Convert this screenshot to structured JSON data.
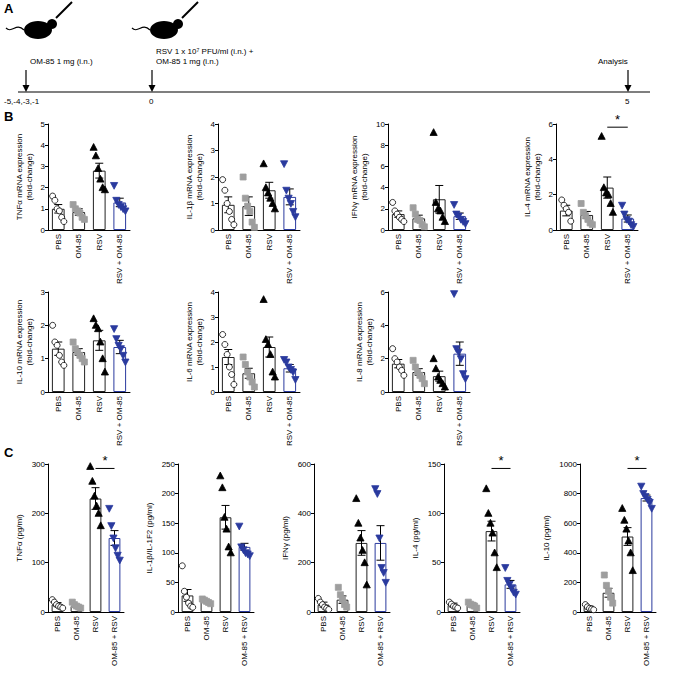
{
  "diagram": {
    "panel": "A",
    "steps": [
      {
        "label": "OM-85 1 mg (i.n.)",
        "time": "-5,-4,-3,-1"
      },
      {
        "label": "RSV 1 x 10⁷ PFU/ml (i.n.) +\nOM-85 1 mg (i.n.)",
        "time": "0"
      },
      {
        "label": "Analysis",
        "time": "5"
      }
    ]
  },
  "chart_data": [
    {
      "type": "bar",
      "panel": "B",
      "y_label": "TNFα mRNA expression\n(fold-change)",
      "categories": [
        "PBS",
        "OM-85",
        "RSV",
        "RSV + OM-85"
      ],
      "ylim": [
        0,
        5
      ],
      "yticks": [
        0,
        1,
        2,
        3,
        4,
        5
      ],
      "series": [
        {
          "color": "#ffffff",
          "marker": "circle",
          "value": 1.0,
          "error": 0.2,
          "points": [
            1.6,
            1.4,
            1.0,
            0.9,
            0.6,
            0.4
          ]
        },
        {
          "color": "#9e9e9e",
          "marker": "square",
          "value": 0.85,
          "error": 0.15,
          "points": [
            1.2,
            1.0,
            0.9,
            0.8,
            0.6,
            0.5
          ]
        },
        {
          "color": "#000000",
          "marker": "triangle",
          "value": 2.8,
          "error": 0.35,
          "points": [
            3.9,
            3.5,
            2.9,
            2.4,
            2.0,
            1.9
          ]
        },
        {
          "color": "#2a3a9e",
          "marker": "triangle-down",
          "value": 1.3,
          "error": 0.2,
          "points": [
            2.1,
            1.4,
            1.2,
            1.1,
            1.0,
            0.9
          ]
        }
      ],
      "annotations": []
    },
    {
      "type": "bar",
      "panel": "B",
      "y_label": "IL-1β mRNA expression\n(fold-change)",
      "categories": [
        "PBS",
        "OM-85",
        "RSV",
        "RSV + OM-85"
      ],
      "ylim": [
        0,
        4
      ],
      "yticks": [
        0,
        1,
        2,
        3,
        4
      ],
      "series": [
        {
          "color": "#ffffff",
          "marker": "circle",
          "value": 0.95,
          "error": 0.3,
          "points": [
            1.9,
            1.5,
            1.0,
            0.7,
            0.4,
            0.2
          ]
        },
        {
          "color": "#9e9e9e",
          "marker": "square",
          "value": 0.9,
          "error": 0.35,
          "points": [
            2.0,
            1.2,
            0.9,
            0.7,
            0.3,
            0.1
          ]
        },
        {
          "color": "#000000",
          "marker": "triangle",
          "value": 1.5,
          "error": 0.3,
          "points": [
            2.5,
            1.6,
            1.4,
            1.2,
            1.0,
            0.8
          ]
        },
        {
          "color": "#2a3a9e",
          "marker": "triangle-down",
          "value": 1.25,
          "error": 0.3,
          "points": [
            2.5,
            1.5,
            1.2,
            1.0,
            0.7,
            0.5
          ]
        }
      ],
      "annotations": []
    },
    {
      "type": "bar",
      "panel": "B",
      "y_label": "IFNγ mRNA expression\n(fold-change)",
      "categories": [
        "PBS",
        "OM-85",
        "RSV",
        "RSV + OM-85"
      ],
      "ylim": [
        0,
        10
      ],
      "yticks": [
        0,
        2,
        4,
        6,
        8,
        10
      ],
      "series": [
        {
          "color": "#ffffff",
          "marker": "circle",
          "value": 1.5,
          "error": 0.3,
          "points": [
            2.6,
            1.8,
            1.5,
            1.2,
            1.0,
            0.8
          ]
        },
        {
          "color": "#9e9e9e",
          "marker": "square",
          "value": 1.1,
          "error": 0.3,
          "points": [
            2.1,
            1.5,
            1.0,
            0.9,
            0.5,
            0.3
          ]
        },
        {
          "color": "#000000",
          "marker": "triangle",
          "value": 2.9,
          "error": 1.3,
          "points": [
            9.2,
            2.6,
            2.0,
            1.8,
            1.2,
            0.8
          ]
        },
        {
          "color": "#2a3a9e",
          "marker": "triangle-down",
          "value": 1.3,
          "error": 0.3,
          "points": [
            2.4,
            1.5,
            1.3,
            1.0,
            0.8,
            0.6
          ]
        }
      ],
      "annotations": []
    },
    {
      "type": "bar",
      "panel": "B",
      "y_label": "IL-4 mRNA expression\n(fold-change)",
      "categories": [
        "PBS",
        "OM-85",
        "RSV",
        "RSV + OM-85"
      ],
      "ylim": [
        0,
        6
      ],
      "yticks": [
        0,
        2,
        4,
        6
      ],
      "series": [
        {
          "color": "#ffffff",
          "marker": "circle",
          "value": 1.1,
          "error": 0.3,
          "points": [
            1.7,
            1.4,
            1.2,
            1.0,
            0.5
          ]
        },
        {
          "color": "#9e9e9e",
          "marker": "square",
          "value": 0.85,
          "error": 0.2,
          "points": [
            1.5,
            1.0,
            0.8,
            0.6,
            0.4,
            0.3
          ]
        },
        {
          "color": "#000000",
          "marker": "triangle",
          "value": 2.4,
          "error": 0.6,
          "points": [
            5.3,
            2.4,
            2.1,
            2.0,
            1.5,
            1.0
          ]
        },
        {
          "color": "#2a3a9e",
          "marker": "triangle-down",
          "value": 0.65,
          "error": 0.2,
          "points": [
            1.4,
            0.9,
            0.6,
            0.5,
            0.3,
            0.2
          ]
        }
      ],
      "annotations": [
        {
          "text": "*",
          "between": [
            "RSV",
            "RSV + OM-85"
          ]
        }
      ]
    },
    {
      "type": "bar",
      "panel": "B",
      "y_label": "IL-10 mRNA expression\n(fold-change)",
      "categories": [
        "PBS",
        "OM-85",
        "RSV",
        "RSV + OM-85"
      ],
      "ylim": [
        0,
        3
      ],
      "yticks": [
        0,
        1,
        2,
        3
      ],
      "series": [
        {
          "color": "#ffffff",
          "marker": "circle",
          "value": 1.3,
          "error": 0.2,
          "points": [
            2.0,
            1.5,
            1.4,
            1.1,
            0.9,
            0.8
          ]
        },
        {
          "color": "#9e9e9e",
          "marker": "square",
          "value": 1.2,
          "error": 0.1,
          "points": [
            1.5,
            1.3,
            1.2,
            1.1,
            1.0,
            0.9
          ]
        },
        {
          "color": "#000000",
          "marker": "triangle",
          "value": 1.55,
          "error": 0.3,
          "points": [
            2.2,
            2.0,
            1.9,
            1.5,
            1.0,
            0.6
          ]
        },
        {
          "color": "#2a3a9e",
          "marker": "triangle-down",
          "value": 1.35,
          "error": 0.2,
          "points": [
            1.9,
            1.6,
            1.4,
            1.3,
            1.1,
            0.9
          ]
        }
      ],
      "annotations": []
    },
    {
      "type": "bar",
      "panel": "B",
      "y_label": "IL-6 mRNA expression\n(fold-change)",
      "categories": [
        "PBS",
        "OM-85",
        "RSV",
        "RSV + OM-85"
      ],
      "ylim": [
        0,
        4
      ],
      "yticks": [
        0,
        1,
        2,
        3,
        4
      ],
      "series": [
        {
          "color": "#ffffff",
          "marker": "circle",
          "value": 1.4,
          "error": 0.3,
          "points": [
            2.3,
            1.9,
            1.5,
            1.0,
            0.7,
            0.3
          ]
        },
        {
          "color": "#9e9e9e",
          "marker": "square",
          "value": 0.75,
          "error": 0.2,
          "points": [
            1.4,
            1.1,
            0.8,
            0.6,
            0.4,
            0.2
          ]
        },
        {
          "color": "#000000",
          "marker": "triangle",
          "value": 1.8,
          "error": 0.4,
          "points": [
            3.7,
            2.1,
            1.9,
            1.5,
            0.8,
            0.6
          ]
        },
        {
          "color": "#2a3a9e",
          "marker": "triangle-down",
          "value": 0.95,
          "error": 0.15,
          "points": [
            1.3,
            1.2,
            1.0,
            0.9,
            0.8,
            0.5
          ]
        }
      ],
      "annotations": []
    },
    {
      "type": "bar",
      "panel": "B",
      "y_label": "IL-8 mRNA expression\n(fold-change)",
      "categories": [
        "PBS",
        "OM-85",
        "RSV",
        "RSV + OM-85"
      ],
      "ylim": [
        0,
        6
      ],
      "yticks": [
        0,
        2,
        4,
        6
      ],
      "series": [
        {
          "color": "#ffffff",
          "marker": "circle",
          "value": 1.7,
          "error": 0.25,
          "points": [
            2.6,
            2.0,
            1.8,
            1.5,
            1.3,
            1.0
          ]
        },
        {
          "color": "#9e9e9e",
          "marker": "square",
          "value": 1.2,
          "error": 0.2,
          "points": [
            1.9,
            1.5,
            1.2,
            1.0,
            0.8,
            0.5
          ]
        },
        {
          "color": "#000000",
          "marker": "triangle",
          "value": 0.95,
          "error": 0.3,
          "points": [
            2.0,
            1.4,
            0.9,
            0.7,
            0.5,
            0.3
          ]
        },
        {
          "color": "#2a3a9e",
          "marker": "triangle-down",
          "value": 2.3,
          "error": 0.7,
          "points": [
            5.9,
            2.6,
            2.4,
            2.0,
            1.1,
            0.8
          ]
        }
      ],
      "annotations": []
    },
    {
      "type": "bar",
      "panel": "C",
      "y_label": "TNFα (pg/ml)",
      "categories": [
        "PBS",
        "OM-85",
        "RSV",
        "OM-85 + RSV"
      ],
      "ylim": [
        0,
        300
      ],
      "yticks": [
        0,
        100,
        200,
        300
      ],
      "series": [
        {
          "color": "#ffffff",
          "marker": "circle",
          "value": 15,
          "error": 4,
          "points": [
            25,
            20,
            15,
            12,
            10,
            8
          ]
        },
        {
          "color": "#9e9e9e",
          "marker": "square",
          "value": 12,
          "error": 3,
          "points": [
            20,
            15,
            12,
            10,
            8
          ]
        },
        {
          "color": "#000000",
          "marker": "triangle",
          "value": 230,
          "error": 22,
          "points": [
            295,
            265,
            235,
            215,
            200,
            175
          ]
        },
        {
          "color": "#2a3a9e",
          "marker": "triangle-down",
          "value": 150,
          "error": 15,
          "points": [
            210,
            175,
            150,
            130,
            115,
            105
          ]
        }
      ],
      "annotations": [
        {
          "text": "*",
          "between": [
            "RSV",
            "OM-85 + RSV"
          ]
        }
      ]
    },
    {
      "type": "bar",
      "panel": "C",
      "y_label": "IL-1β/IL-1F2 (pg/ml)",
      "categories": [
        "PBS",
        "OM-85",
        "RSV",
        "OM-85 + RSV"
      ],
      "ylim": [
        0,
        250
      ],
      "yticks": [
        0,
        50,
        100,
        150,
        200,
        250
      ],
      "series": [
        {
          "color": "#ffffff",
          "marker": "circle",
          "value": 28,
          "error": 10,
          "points": [
            78,
            35,
            25,
            15,
            10,
            8
          ]
        },
        {
          "color": "#9e9e9e",
          "marker": "square",
          "value": 18,
          "error": 2,
          "points": [
            22,
            20,
            18,
            16,
            14
          ]
        },
        {
          "color": "#000000",
          "marker": "triangle",
          "value": 160,
          "error": 20,
          "points": [
            230,
            210,
            160,
            140,
            110,
            100
          ]
        },
        {
          "color": "#2a3a9e",
          "marker": "triangle-down",
          "value": 110,
          "error": 6,
          "points": [
            145,
            110,
            105,
            100,
            98,
            95
          ]
        }
      ],
      "annotations": []
    },
    {
      "type": "bar",
      "panel": "C",
      "y_label": "IFNγ (pg/ml)",
      "categories": [
        "PBS",
        "OM-85",
        "RSV",
        "OM-85 + RSV"
      ],
      "ylim": [
        0,
        600
      ],
      "yticks": [
        0,
        200,
        400,
        600
      ],
      "series": [
        {
          "color": "#ffffff",
          "marker": "circle",
          "value": 30,
          "error": 10,
          "points": [
            55,
            40,
            30,
            20,
            15,
            10
          ]
        },
        {
          "color": "#9e9e9e",
          "marker": "square",
          "value": 50,
          "error": 15,
          "points": [
            100,
            70,
            50,
            30,
            20
          ]
        },
        {
          "color": "#000000",
          "marker": "triangle",
          "value": 280,
          "error": 50,
          "points": [
            460,
            360,
            300,
            250,
            200,
            110
          ]
        },
        {
          "color": "#2a3a9e",
          "marker": "triangle-down",
          "value": 280,
          "error": 70,
          "points": [
            500,
            480,
            300,
            180,
            160,
            120
          ]
        }
      ],
      "annotations": []
    },
    {
      "type": "bar",
      "panel": "C",
      "y_label": "IL-4 (pg/ml)",
      "categories": [
        "PBS",
        "OM-85",
        "RSV",
        "OM-85 + RSV"
      ],
      "ylim": [
        0,
        150
      ],
      "yticks": [
        0,
        50,
        100,
        150
      ],
      "series": [
        {
          "color": "#ffffff",
          "marker": "circle",
          "value": 7,
          "error": 2,
          "points": [
            10,
            8,
            6,
            5,
            4
          ]
        },
        {
          "color": "#9e9e9e",
          "marker": "square",
          "value": 7,
          "error": 2,
          "points": [
            10,
            8,
            7,
            6,
            4
          ]
        },
        {
          "color": "#000000",
          "marker": "triangle",
          "value": 82,
          "error": 10,
          "points": [
            125,
            100,
            90,
            80,
            60,
            45
          ]
        },
        {
          "color": "#2a3a9e",
          "marker": "triangle-down",
          "value": 28,
          "error": 4,
          "points": [
            45,
            32,
            28,
            24,
            20,
            18
          ]
        }
      ],
      "annotations": [
        {
          "text": "*",
          "between": [
            "RSV",
            "OM-85 + RSV"
          ]
        }
      ]
    },
    {
      "type": "bar",
      "panel": "C",
      "y_label": "IL-10 (pg/ml)",
      "categories": [
        "PBS",
        "OM-85",
        "RSV",
        "OM-85 + RSV"
      ],
      "ylim": [
        0,
        1000
      ],
      "yticks": [
        0,
        200,
        400,
        600,
        800,
        1000
      ],
      "series": [
        {
          "color": "#ffffff",
          "marker": "circle",
          "value": 30,
          "error": 10,
          "points": [
            50,
            35,
            25,
            20,
            15
          ]
        },
        {
          "color": "#9e9e9e",
          "marker": "square",
          "value": 130,
          "error": 30,
          "points": [
            250,
            180,
            140,
            100,
            60
          ]
        },
        {
          "color": "#000000",
          "marker": "triangle",
          "value": 510,
          "error": 60,
          "points": [
            700,
            620,
            560,
            480,
            400,
            280
          ]
        },
        {
          "color": "#2a3a9e",
          "marker": "triangle-down",
          "value": 770,
          "error": 20,
          "points": [
            850,
            800,
            780,
            760,
            740,
            700
          ]
        }
      ],
      "annotations": [
        {
          "text": "*",
          "between": [
            "RSV",
            "OM-85 + RSV"
          ]
        }
      ]
    }
  ]
}
